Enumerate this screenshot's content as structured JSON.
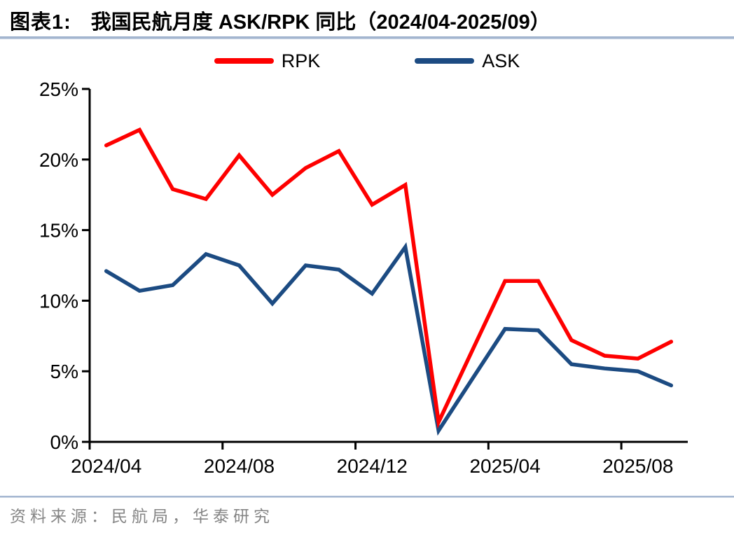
{
  "header": {
    "figure_label": "图表1:",
    "title": "我国民航月度 ASK/RPK 同比（2024/04-2025/09）"
  },
  "footer": {
    "source": "资料来源：民航局，华泰研究"
  },
  "colors": {
    "rpk_red": "#fe0000",
    "ask_navy": "#1c4b82",
    "divider_blue_gray": "#a8b9d0",
    "axis_black": "#000000",
    "source_gray": "#858585"
  },
  "chart_data": {
    "type": "line",
    "title": "我国民航月度 ASK/RPK 同比",
    "period": "2024/04-2025/09",
    "x": [
      "2024/04",
      "2024/05",
      "2024/06",
      "2024/07",
      "2024/08",
      "2024/09",
      "2024/10",
      "2024/11",
      "2024/12",
      "2025/01",
      "2025/02",
      "2025/03",
      "2025/04",
      "2025/05",
      "2025/06",
      "2025/07",
      "2025/08",
      "2025/09"
    ],
    "series": [
      {
        "name": "RPK",
        "color": "#fe0000",
        "values": [
          21.0,
          22.1,
          17.9,
          17.2,
          20.3,
          17.5,
          19.4,
          20.6,
          16.8,
          18.2,
          1.4,
          6.4,
          11.4,
          11.4,
          7.2,
          6.1,
          5.9,
          7.1
        ]
      },
      {
        "name": "ASK",
        "color": "#1c4b82",
        "values": [
          12.1,
          10.7,
          11.1,
          13.3,
          12.5,
          9.8,
          12.5,
          12.2,
          10.5,
          13.8,
          0.8,
          4.4,
          8.0,
          7.9,
          5.5,
          5.2,
          5.0,
          4.0
        ]
      }
    ],
    "ylim": [
      0,
      25
    ],
    "y_ticks": [
      0,
      5,
      10,
      15,
      20,
      25
    ],
    "y_tick_labels": [
      "0%",
      "5%",
      "10%",
      "15%",
      "20%",
      "25%"
    ],
    "x_tick_indices": [
      0,
      4,
      8,
      12,
      16
    ],
    "x_tick_labels": [
      "2024/04",
      "2024/08",
      "2024/12",
      "2025/04",
      "2025/08"
    ],
    "grid": false,
    "legend_position": "top"
  }
}
